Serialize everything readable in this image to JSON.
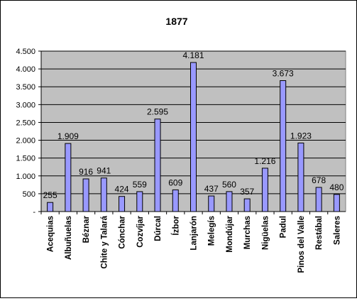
{
  "chart_data": {
    "type": "bar",
    "title": "1877",
    "categories": [
      "Acequias",
      "Albuñuelas",
      "Béznar",
      "Chite y Talará",
      "Cónchar",
      "Cozvíjar",
      "Dúrcal",
      "Ízbor",
      "Lanjarón",
      "Melegís",
      "Mondújar",
      "Murchas",
      "Nigüelas",
      "Padul",
      "Pinos del Valle",
      "Restábal",
      "Saleres"
    ],
    "values": [
      255,
      1909,
      916,
      941,
      424,
      559,
      2595,
      609,
      4181,
      437,
      560,
      357,
      1216,
      3673,
      1923,
      678,
      480
    ],
    "value_labels": [
      "255",
      "1.909",
      "916",
      "941",
      "424",
      "559",
      "2.595",
      "609",
      "4.181",
      "437",
      "560",
      "357",
      "1.216",
      "3.673",
      "1.923",
      "678",
      "480"
    ],
    "ylim": [
      0,
      4500
    ],
    "yticks": [
      0,
      500,
      1000,
      1500,
      2000,
      2500,
      3000,
      3500,
      4000,
      4500
    ],
    "ytick_labels": [
      "-",
      "500",
      "1.000",
      "1.500",
      "2.000",
      "2.500",
      "3.000",
      "3.500",
      "4.000",
      "4.500"
    ],
    "xlabel": "",
    "ylabel": "",
    "grid": true,
    "legend": "none",
    "colors": {
      "plot_background": "#C0C0C0",
      "bar_fill": "#9999FF",
      "bar_stroke": "#000000",
      "grid": "#000000"
    }
  }
}
